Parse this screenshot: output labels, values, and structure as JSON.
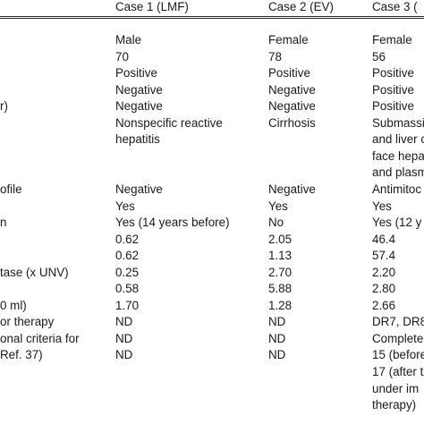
{
  "header": {
    "col1": "Case 1 (LMF)",
    "col2": "Case 2 (EV)",
    "col3": "Case 3 ("
  },
  "rows": [
    {
      "label": "",
      "c1": "Male",
      "c2": "Female",
      "c3": "Female"
    },
    {
      "label": "",
      "c1": "70",
      "c2": "78",
      "c3": "56"
    },
    {
      "label": "",
      "c1": "Positive",
      "c2": "Positive",
      "c3": "Positive"
    },
    {
      "label": "",
      "c1": "Negative",
      "c2": "Negative",
      "c3": "Positive"
    },
    {
      "label": "r)",
      "c1": "Negative",
      "c2": "Negative",
      "c3": "Positive"
    },
    {
      "label": "",
      "c1": "Nonspecific reactive",
      "c2": "Cirrhosis",
      "c3": "Submassi"
    },
    {
      "label": "",
      "c1": "hepatitis",
      "c2": "",
      "c3": "and liver c"
    },
    {
      "label": "",
      "c1": "",
      "c2": "",
      "c3": "face hepa"
    },
    {
      "label": "",
      "c1": "",
      "c2": "",
      "c3": "and plasm"
    },
    {
      "label": "ofile",
      "c1": "Negative",
      "c2": "Negative",
      "c3": "Antimitoc"
    },
    {
      "label": "",
      "c1": "Yes",
      "c2": "Yes",
      "c3": "Yes"
    },
    {
      "label": "n",
      "c1": "Yes (14 years before)",
      "c2": "No",
      "c3": "Yes (12 y"
    },
    {
      "label": "",
      "c1": "0.62",
      "c2": "2.05",
      "c3": "46.4"
    },
    {
      "label": "",
      "c1": "0.62",
      "c2": "1.13",
      "c3": "57.4"
    },
    {
      "label": "tase (x UNV)",
      "c1": "0.25",
      "c2": "2.70",
      "c3": "2.20"
    },
    {
      "label": "",
      "c1": "0.58",
      "c2": "5.88",
      "c3": "2.80"
    },
    {
      "label": "0 ml)",
      "c1": "1.70",
      "c2": "1.28",
      "c3": "2.66"
    },
    {
      "label": "or therapy",
      "c1": "ND",
      "c2": "ND",
      "c3": "DR7, DR8"
    },
    {
      "label": "onal criteria for",
      "c1": "ND",
      "c2": "ND",
      "c3": "Complete"
    },
    {
      "label": "Ref. 37)",
      "c1": "ND",
      "c2": "ND",
      "c3": "15 (before"
    },
    {
      "label": "",
      "c1": "",
      "c2": "",
      "c3": "17 (after t"
    },
    {
      "label": "",
      "c1": "",
      "c2": "",
      "c3": "under im"
    },
    {
      "label": "",
      "c1": "",
      "c2": "",
      "c3": "therapy)"
    }
  ]
}
